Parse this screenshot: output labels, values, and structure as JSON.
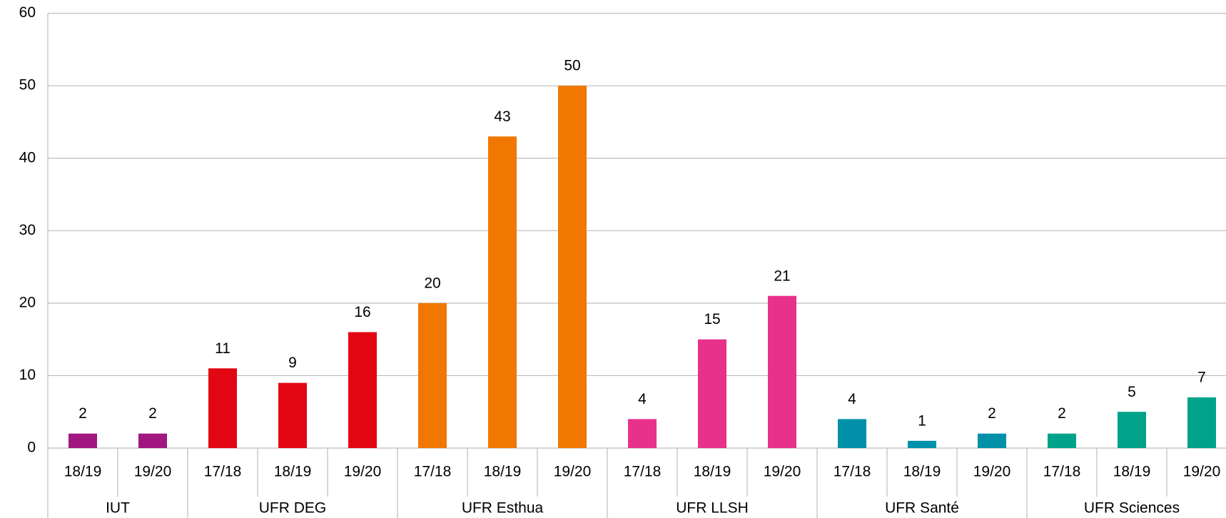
{
  "chart_data": {
    "type": "bar",
    "groups": [
      {
        "name": "IUT",
        "color": "#a1177f",
        "categories": [
          "18/19",
          "19/20"
        ],
        "values": [
          2,
          2
        ]
      },
      {
        "name": "UFR DEG",
        "color": "#e30613",
        "categories": [
          "17/18",
          "18/19",
          "19/20"
        ],
        "values": [
          11,
          9,
          16
        ]
      },
      {
        "name": "UFR Esthua",
        "color": "#f07800",
        "categories": [
          "17/18",
          "18/19",
          "19/20"
        ],
        "values": [
          20,
          43,
          50
        ]
      },
      {
        "name": "UFR LLSH",
        "color": "#e8318a",
        "categories": [
          "17/18",
          "18/19",
          "19/20"
        ],
        "values": [
          4,
          15,
          21
        ]
      },
      {
        "name": "UFR Santé",
        "color": "#0091a8",
        "categories": [
          "17/18",
          "18/19",
          "19/20"
        ],
        "values": [
          4,
          1,
          2
        ]
      },
      {
        "name": "UFR Sciences",
        "color": "#00a28a",
        "categories": [
          "17/18",
          "18/19",
          "19/20"
        ],
        "values": [
          2,
          5,
          7
        ]
      }
    ],
    "ylim": [
      0,
      60
    ],
    "yticks": [
      0,
      10,
      20,
      30,
      40,
      50,
      60
    ],
    "grid": true
  }
}
